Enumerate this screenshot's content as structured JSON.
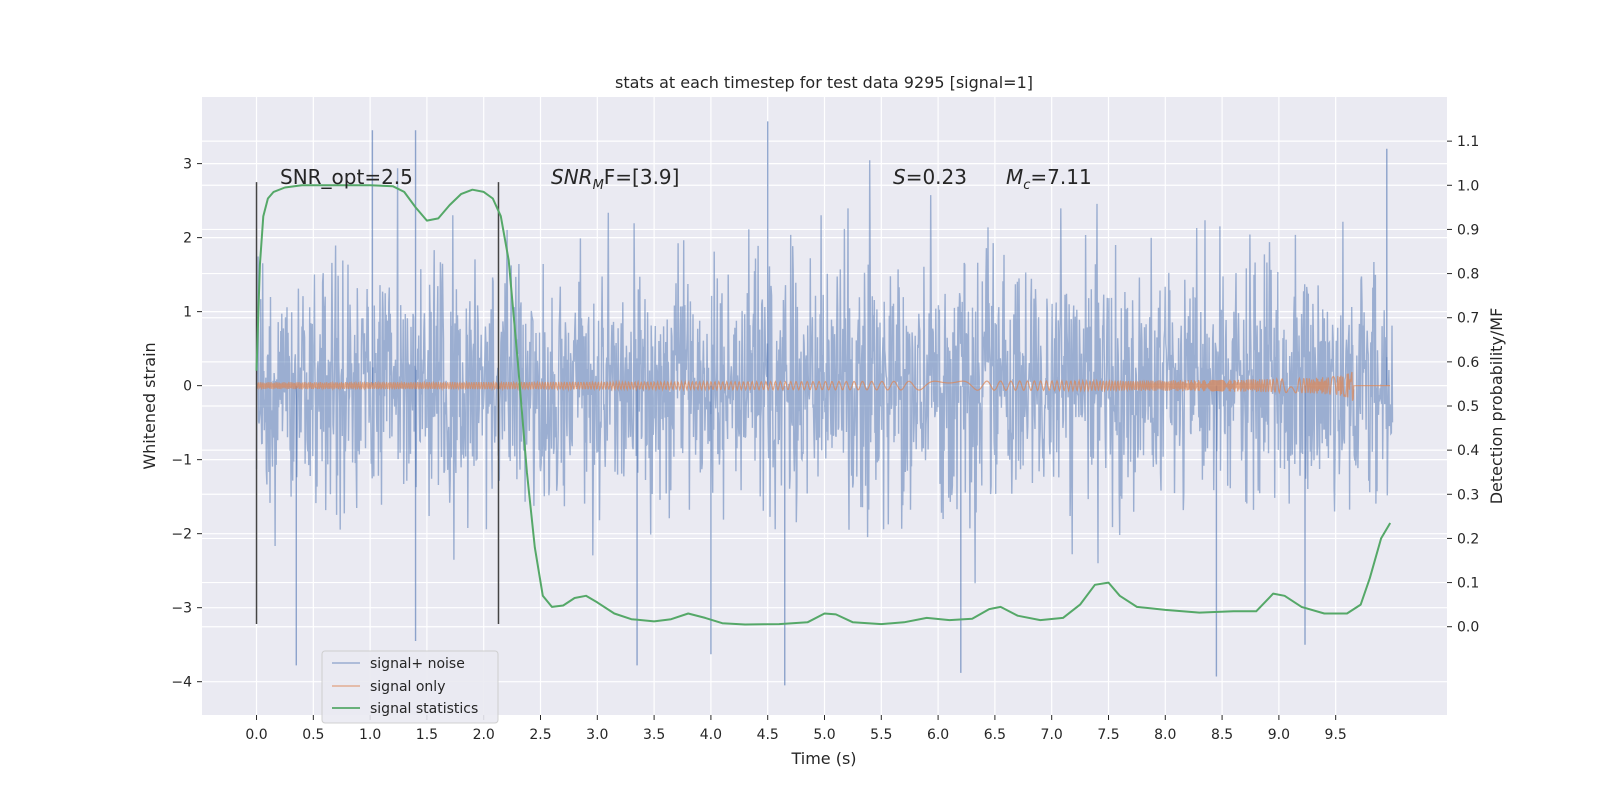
{
  "chart_data": {
    "type": "line",
    "title": "stats at each timestep for test data 9295 [signal=1]",
    "xlabel": "Time (s)",
    "ylabel": "Whitened strain",
    "y2label": "Detection probability/MF",
    "xlim": [
      -0.48,
      10.48
    ],
    "ylim": [
      -4.45,
      3.9
    ],
    "y2lim": [
      -0.2,
      1.2
    ],
    "xticks": [
      "0.0",
      "0.5",
      "1.0",
      "1.5",
      "2.0",
      "2.5",
      "3.0",
      "3.5",
      "4.0",
      "4.5",
      "5.0",
      "5.5",
      "6.0",
      "6.5",
      "7.0",
      "7.5",
      "8.0",
      "8.5",
      "9.0",
      "9.5"
    ],
    "yticks": [
      "−4",
      "−3",
      "−2",
      "−1",
      "0",
      "1",
      "2",
      "3"
    ],
    "y2ticks": [
      "0.0",
      "0.1",
      "0.2",
      "0.3",
      "0.4",
      "0.5",
      "0.6",
      "0.7",
      "0.8",
      "0.9",
      "1.0",
      "1.1"
    ],
    "grid": true,
    "legend_position": "lower-left",
    "annotations": {
      "snr_opt": "SNR_opt=2.5",
      "snr_mf_prefix": "SNR",
      "snr_mf_sub": "M",
      "snr_mf_suffix": "F=[3.9]",
      "s_prefix": "S",
      "s_value": "=0.23",
      "mc_prefix": "M",
      "mc_sub": "c",
      "mc_value": "=7.11"
    },
    "vlines": [
      {
        "x": 0.0,
        "ymin": -3.22,
        "ymax": 2.75
      },
      {
        "x": 2.13,
        "ymin": -3.22,
        "ymax": 2.75
      }
    ],
    "series": [
      {
        "name": "signal+ noise",
        "color": "#4c72b0",
        "axis": "left",
        "kind": "noise",
        "t_range": [
          0.0,
          10.0
        ],
        "std": 0.8,
        "highlights": [
          {
            "x": 1.02,
            "y": 3.45
          },
          {
            "x": 1.4,
            "y": 3.45
          },
          {
            "x": 4.5,
            "y": 3.57
          },
          {
            "x": 4.65,
            "y": -4.05
          },
          {
            "x": 8.45,
            "y": -3.93
          },
          {
            "x": 6.2,
            "y": -3.88
          },
          {
            "x": 0.35,
            "y": -3.78
          },
          {
            "x": 3.35,
            "y": -3.78
          },
          {
            "x": 4.0,
            "y": -3.63
          },
          {
            "x": 1.4,
            "y": -3.45
          },
          {
            "x": 9.95,
            "y": 3.2
          },
          {
            "x": 9.23,
            "y": -3.5
          }
        ]
      },
      {
        "name": "signal only",
        "color": "#dd8452",
        "axis": "left",
        "kind": "chirp",
        "t_range": [
          0.0,
          9.67
        ],
        "peak_amplitude": 0.25
      },
      {
        "name": "signal statistics",
        "color": "#55a868",
        "axis": "right",
        "kind": "line",
        "points": [
          [
            0.0,
            0.58
          ],
          [
            0.03,
            0.82
          ],
          [
            0.06,
            0.93
          ],
          [
            0.1,
            0.97
          ],
          [
            0.15,
            0.985
          ],
          [
            0.25,
            0.995
          ],
          [
            0.4,
            1.0
          ],
          [
            0.7,
            1.0
          ],
          [
            1.0,
            1.0
          ],
          [
            1.2,
            0.998
          ],
          [
            1.3,
            0.985
          ],
          [
            1.4,
            0.95
          ],
          [
            1.5,
            0.92
          ],
          [
            1.6,
            0.925
          ],
          [
            1.7,
            0.955
          ],
          [
            1.8,
            0.98
          ],
          [
            1.9,
            0.99
          ],
          [
            2.0,
            0.985
          ],
          [
            2.08,
            0.97
          ],
          [
            2.15,
            0.93
          ],
          [
            2.22,
            0.83
          ],
          [
            2.3,
            0.6
          ],
          [
            2.38,
            0.35
          ],
          [
            2.45,
            0.18
          ],
          [
            2.52,
            0.07
          ],
          [
            2.6,
            0.045
          ],
          [
            2.7,
            0.048
          ],
          [
            2.8,
            0.065
          ],
          [
            2.9,
            0.07
          ],
          [
            3.0,
            0.055
          ],
          [
            3.15,
            0.03
          ],
          [
            3.3,
            0.017
          ],
          [
            3.5,
            0.012
          ],
          [
            3.65,
            0.017
          ],
          [
            3.8,
            0.03
          ],
          [
            3.95,
            0.02
          ],
          [
            4.1,
            0.008
          ],
          [
            4.3,
            0.005
          ],
          [
            4.6,
            0.006
          ],
          [
            4.85,
            0.01
          ],
          [
            5.0,
            0.03
          ],
          [
            5.1,
            0.028
          ],
          [
            5.25,
            0.01
          ],
          [
            5.5,
            0.006
          ],
          [
            5.7,
            0.01
          ],
          [
            5.9,
            0.02
          ],
          [
            6.1,
            0.015
          ],
          [
            6.3,
            0.018
          ],
          [
            6.45,
            0.04
          ],
          [
            6.55,
            0.045
          ],
          [
            6.7,
            0.025
          ],
          [
            6.9,
            0.015
          ],
          [
            7.1,
            0.02
          ],
          [
            7.25,
            0.05
          ],
          [
            7.38,
            0.095
          ],
          [
            7.5,
            0.1
          ],
          [
            7.6,
            0.07
          ],
          [
            7.75,
            0.045
          ],
          [
            8.0,
            0.038
          ],
          [
            8.3,
            0.032
          ],
          [
            8.6,
            0.035
          ],
          [
            8.8,
            0.035
          ],
          [
            8.95,
            0.075
          ],
          [
            9.05,
            0.07
          ],
          [
            9.2,
            0.045
          ],
          [
            9.4,
            0.03
          ],
          [
            9.6,
            0.03
          ],
          [
            9.72,
            0.05
          ],
          [
            9.8,
            0.11
          ],
          [
            9.9,
            0.2
          ],
          [
            9.98,
            0.235
          ]
        ]
      }
    ]
  }
}
